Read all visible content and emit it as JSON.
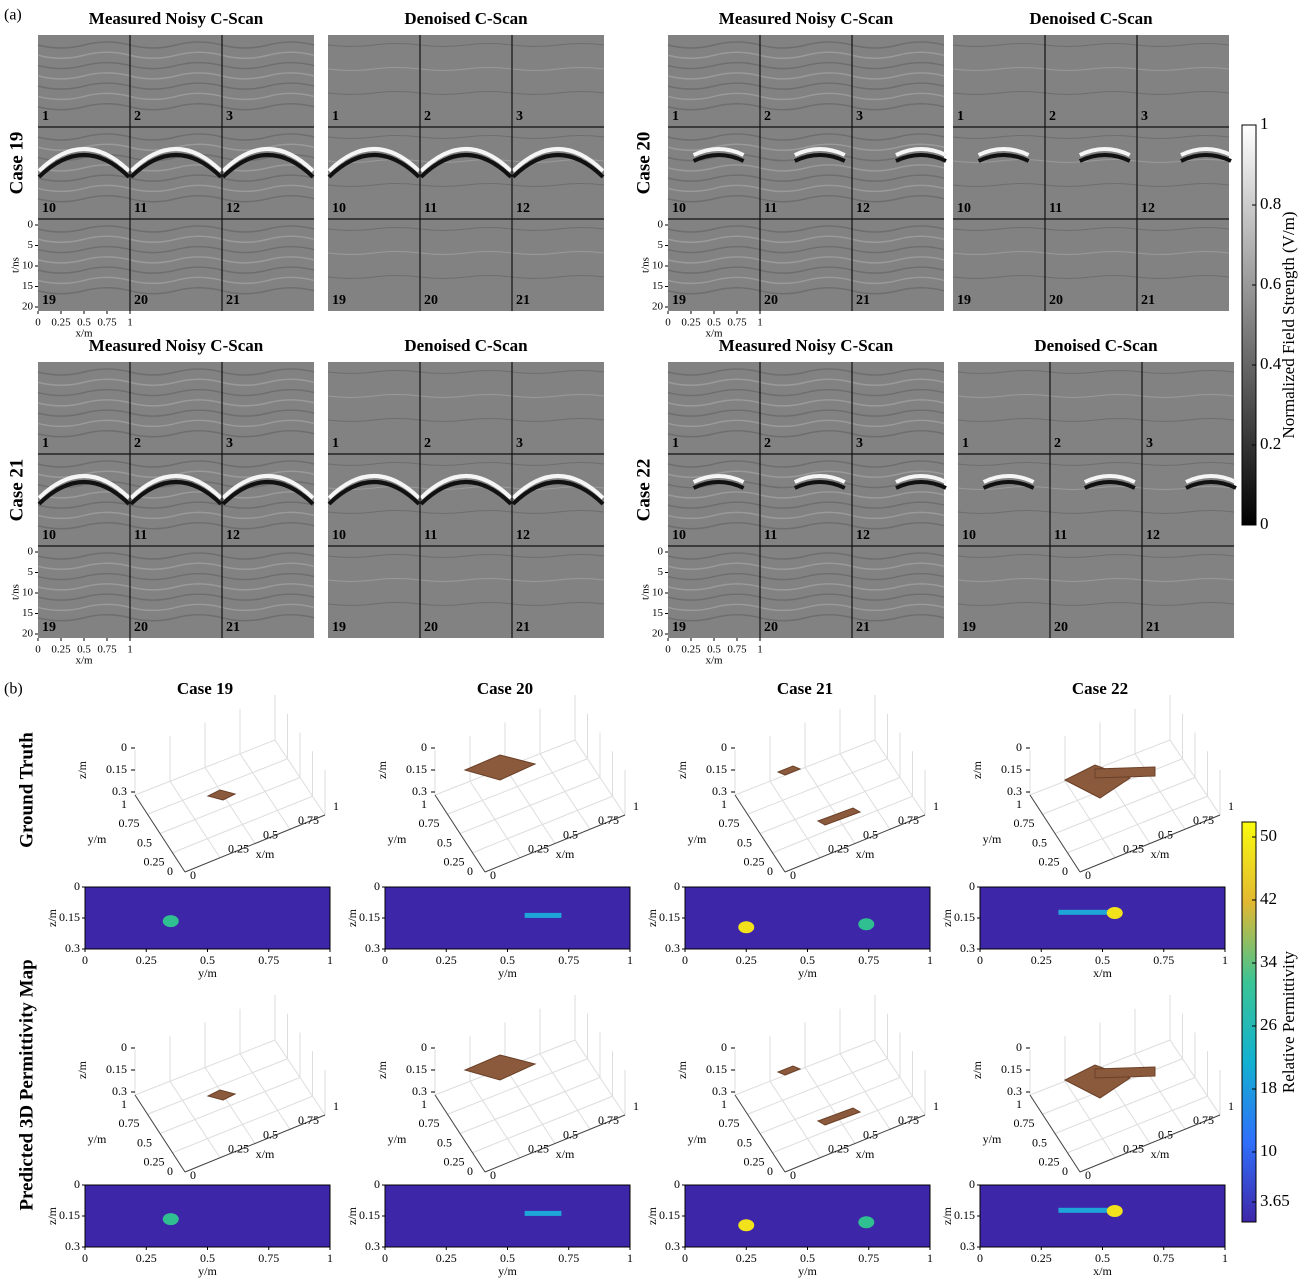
{
  "panel_labels": [
    "(a)",
    "(b)"
  ],
  "part_a": {
    "titles": {
      "noisy": "Measured Noisy C-Scan",
      "denoised": "Denoised C-Scan"
    },
    "cases": [
      "Case 19",
      "Case 20",
      "Case 21",
      "Case 22"
    ],
    "slice_labels": [
      "1",
      "2",
      "3",
      "10",
      "11",
      "12",
      "19",
      "20",
      "21"
    ],
    "t_axis": {
      "label": "t/ns",
      "ticks": [
        0,
        5,
        10,
        15,
        20
      ]
    },
    "x_axis": {
      "label": "x/m",
      "ticks": [
        0,
        0.25,
        0.5,
        0.75,
        1
      ]
    },
    "colorbar": {
      "label": "Normalized Field Strength (V/m)",
      "ticks": [
        0,
        0.2,
        0.4,
        0.6,
        0.8,
        1
      ]
    }
  },
  "part_b": {
    "cases": [
      "Case 19",
      "Case 20",
      "Case 21",
      "Case 22"
    ],
    "rows": [
      "Ground Truth",
      "Predicted 3D Permittivity Map"
    ],
    "axes3d": {
      "z_label": "z/m",
      "z_ticks": [
        0,
        0.15,
        0.3
      ],
      "y_label": "y/m",
      "y_ticks": [
        0.25,
        0.5,
        0.75,
        1
      ],
      "x_label": "x/m",
      "x_ticks": [
        0.25,
        0.5,
        0.75,
        1
      ],
      "origin": "0"
    },
    "slice2d": {
      "z_label": "z/m",
      "z_ticks": [
        0,
        0.15,
        0.3
      ],
      "h_ticks": [
        0,
        0.25,
        0.5,
        0.75,
        1
      ],
      "h_labels": [
        "y/m",
        "y/m",
        "y/m",
        "x/m"
      ]
    },
    "colorbar": {
      "label": "Relative Permittivity",
      "ticks": [
        3.65,
        10,
        18,
        26,
        34,
        42,
        50
      ]
    }
  }
}
